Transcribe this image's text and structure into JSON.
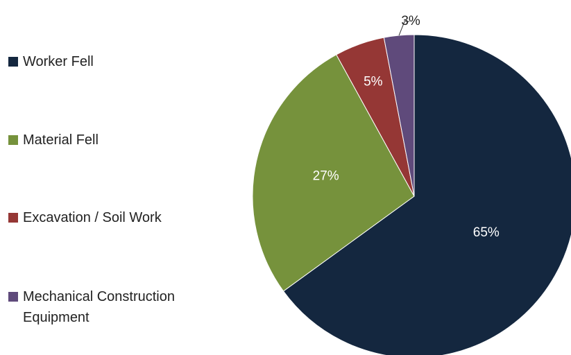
{
  "chart_data": {
    "type": "pie",
    "categories": [
      "Worker Fell",
      "Material Fell",
      "Excavation / Soil Work",
      "Mechanical Construction Equipment"
    ],
    "values": [
      65,
      27,
      5,
      3
    ],
    "value_labels": [
      "65%",
      "27%",
      "5%",
      "3%"
    ],
    "colors": [
      "#14273f",
      "#76923c",
      "#953735",
      "#5f4a7b"
    ],
    "legend": "left"
  }
}
